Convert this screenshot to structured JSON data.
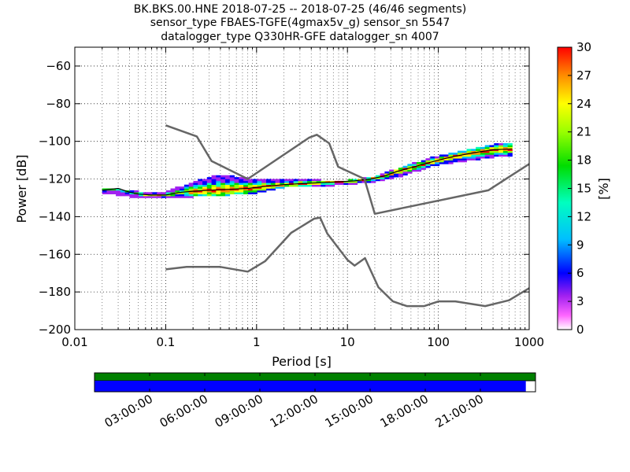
{
  "chart_data": {
    "type": "heatmap",
    "title_lines": [
      "BK.BKS.00.HNE   2018-07-25 -- 2018-07-25  (46/46 segments)",
      "sensor_type FBAES-TGFE(4gmax5v_g) sensor_sn 5547",
      "datalogger_type Q330HR-GFE datalogger_sn 4007"
    ],
    "xlabel": "Period [s]",
    "ylabel": "Power [dB]",
    "x_scale": "log",
    "xlim": [
      0.01,
      1000
    ],
    "ylim": [
      -200,
      -50
    ],
    "x_ticks": [
      0.01,
      0.1,
      1,
      10,
      100,
      1000
    ],
    "x_tick_labels": [
      "0.01",
      "0.1",
      "1",
      "10",
      "100",
      "1000"
    ],
    "y_ticks": [
      -200,
      -180,
      -160,
      -140,
      -120,
      -100,
      -80,
      -60
    ],
    "y_tick_labels": [
      "−200",
      "−180",
      "−160",
      "−140",
      "−120",
      "−100",
      "−80",
      "−60"
    ],
    "grid": true,
    "colorbar": {
      "label": "[%]",
      "min": 0,
      "max": 30,
      "ticks": [
        "0",
        "3",
        "6",
        "9",
        "12",
        "15",
        "18",
        "21",
        "24",
        "27",
        "30"
      ]
    },
    "noise_models": [
      {
        "name": "high",
        "points": [
          [
            0.1,
            -91.5
          ],
          [
            0.22,
            -97.4
          ],
          [
            0.32,
            -110.5
          ],
          [
            0.8,
            -120
          ],
          [
            3.8,
            -98
          ],
          [
            4.6,
            -96.5
          ],
          [
            6.3,
            -101
          ],
          [
            7.9,
            -113.5
          ],
          [
            15.4,
            -120
          ],
          [
            20,
            -138.5
          ],
          [
            354.8,
            -126
          ],
          [
            1000,
            -112
          ]
        ]
      },
      {
        "name": "low",
        "points": [
          [
            0.1,
            -168
          ],
          [
            0.17,
            -166.7
          ],
          [
            0.4,
            -166.7
          ],
          [
            0.8,
            -169.2
          ],
          [
            1.24,
            -163.7
          ],
          [
            2.4,
            -148.6
          ],
          [
            4.3,
            -141.1
          ],
          [
            5,
            -140.5
          ],
          [
            6,
            -149
          ],
          [
            10,
            -163
          ],
          [
            12,
            -166
          ],
          [
            15.6,
            -162
          ],
          [
            21.9,
            -177.5
          ],
          [
            31.6,
            -185
          ],
          [
            45,
            -187.5
          ],
          [
            70,
            -187.5
          ],
          [
            101,
            -185
          ],
          [
            154,
            -185
          ],
          [
            328,
            -187.5
          ],
          [
            600,
            -184.4
          ],
          [
            1000,
            -178
          ]
        ]
      }
    ],
    "psd_mode": [
      [
        0.02,
        -126
      ],
      [
        0.03,
        -125
      ],
      [
        0.04,
        -127
      ],
      [
        0.05,
        -128
      ],
      [
        0.07,
        -128.5
      ],
      [
        0.1,
        -128.5
      ],
      [
        0.15,
        -127
      ],
      [
        0.2,
        -126.5
      ],
      [
        0.3,
        -126
      ],
      [
        0.5,
        -125.5
      ],
      [
        0.8,
        -125
      ],
      [
        1.2,
        -124
      ],
      [
        2,
        -123
      ],
      [
        3,
        -122.5
      ],
      [
        5,
        -122
      ],
      [
        8,
        -121.5
      ],
      [
        12,
        -121
      ],
      [
        18,
        -120
      ],
      [
        25,
        -118.5
      ],
      [
        35,
        -116
      ],
      [
        50,
        -114
      ],
      [
        70,
        -112
      ],
      [
        100,
        -110
      ],
      [
        150,
        -108
      ],
      [
        250,
        -106
      ],
      [
        400,
        -104.5
      ],
      [
        650,
        -104
      ]
    ],
    "psd_upper": [
      [
        0.02,
        -125
      ],
      [
        0.05,
        -127
      ],
      [
        0.1,
        -127
      ],
      [
        0.2,
        -122
      ],
      [
        0.4,
        -118
      ],
      [
        0.8,
        -120
      ],
      [
        1.5,
        -121
      ],
      [
        3,
        -120
      ],
      [
        5,
        -121
      ],
      [
        10,
        -121
      ],
      [
        20,
        -119
      ],
      [
        40,
        -114
      ],
      [
        100,
        -108
      ],
      [
        200,
        -105
      ],
      [
        400,
        -102
      ],
      [
        650,
        -101
      ]
    ],
    "psd_lower": [
      [
        0.02,
        -127
      ],
      [
        0.05,
        -129.5
      ],
      [
        0.1,
        -129.5
      ],
      [
        0.2,
        -129
      ],
      [
        0.5,
        -128
      ],
      [
        1,
        -127
      ],
      [
        2,
        -124
      ],
      [
        5,
        -123.5
      ],
      [
        10,
        -122.5
      ],
      [
        20,
        -121
      ],
      [
        40,
        -118
      ],
      [
        100,
        -112
      ],
      [
        200,
        -110
      ],
      [
        400,
        -108
      ],
      [
        650,
        -108
      ]
    ]
  },
  "availability": {
    "data_coverage": 0.978,
    "time_ticks": [
      "03:00:00",
      "06:00:00",
      "09:00:00",
      "12:00:00",
      "15:00:00",
      "18:00:00",
      "21:00:00"
    ],
    "colors": {
      "gap_bar": "#008000",
      "data_bar": "#0000ff"
    }
  }
}
